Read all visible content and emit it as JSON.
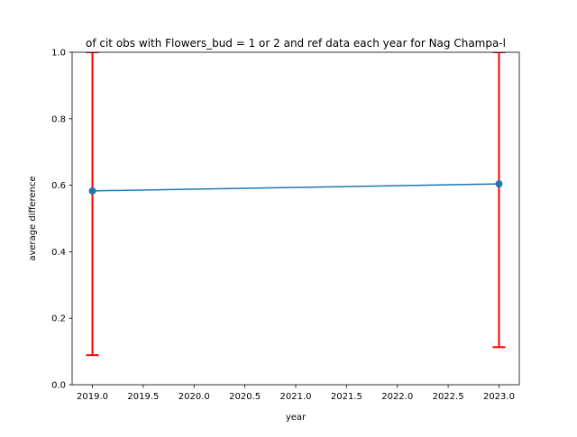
{
  "chart_data": {
    "type": "line",
    "title": "of cit obs with Flowers_bud = 1 or 2 and ref data each year for Nag Champa-l",
    "xlabel": "year",
    "ylabel": "average difference",
    "xlim": [
      2018.8,
      2023.2
    ],
    "ylim": [
      0.0,
      1.0
    ],
    "x_ticks": [
      "2019.0",
      "2019.5",
      "2020.0",
      "2020.5",
      "2021.0",
      "2021.5",
      "2022.0",
      "2022.5",
      "2023.0"
    ],
    "y_ticks": [
      "0.0",
      "0.2",
      "0.4",
      "0.6",
      "0.8",
      "1.0"
    ],
    "grid": false,
    "series": [
      {
        "x": [
          2019.0,
          2023.0
        ],
        "y": [
          0.583,
          0.604
        ],
        "error_lower": [
          0.089,
          0.113
        ],
        "error_upper": [
          1.0,
          1.0
        ],
        "color": "#1f77b4",
        "error_color": "#ff0000"
      }
    ]
  }
}
